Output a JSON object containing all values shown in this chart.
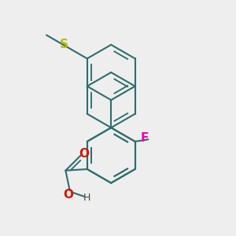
{
  "background_color": "#eeeeee",
  "bond_color": "#2d6e6e",
  "atom_colors": {
    "F": "#ee00bb",
    "S": "#bbbb00",
    "O": "#dd1100",
    "H": "#444444"
  },
  "bond_lw": 1.5,
  "figsize": [
    3.0,
    3.0
  ],
  "dpi": 100
}
